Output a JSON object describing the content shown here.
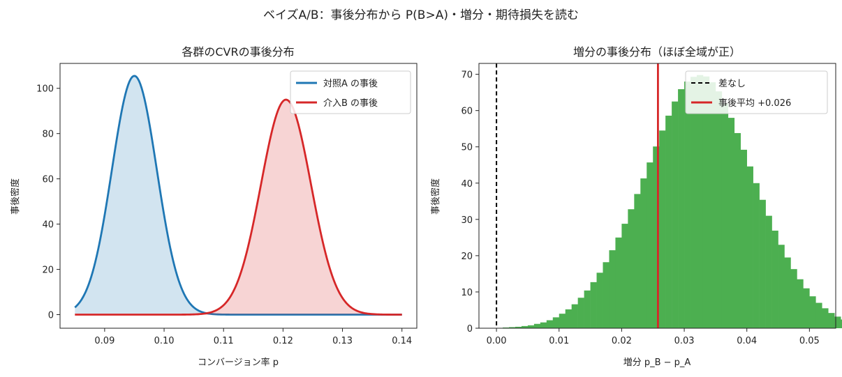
{
  "suptitle": "ベイズA/B：事後分布から P(B>A)・増分・期待損失を読む",
  "colors": {
    "a": "#1f77b4",
    "b": "#d62728",
    "hist": "#4caf50",
    "zero_line": "#000000"
  },
  "chart_data": [
    {
      "type": "area",
      "title": "各群のCVRの事後分布",
      "xlabel": "コンバージョン率 p",
      "ylabel": "事後密度",
      "xlim": [
        0.0825,
        0.1425
      ],
      "ylim": [
        -6,
        111
      ],
      "xticks": [
        0.09,
        0.1,
        0.11,
        0.12,
        0.13,
        0.14
      ],
      "xtick_labels": [
        "0.09",
        "0.10",
        "0.11",
        "0.12",
        "0.13",
        "0.14"
      ],
      "yticks": [
        0,
        20,
        40,
        60,
        80,
        100
      ],
      "ytick_labels": [
        "0",
        "20",
        "40",
        "60",
        "80",
        "100"
      ],
      "grid": false,
      "legend_position": "top-right",
      "x_range": [
        0.085,
        0.14
      ],
      "series": [
        {
          "name": "対照A の事後",
          "color": "#1f77b4",
          "mean": 0.095,
          "sd": 0.00378,
          "peak": 105.5
        },
        {
          "name": "介入B の事後",
          "color": "#d62728",
          "mean": 0.1205,
          "sd": 0.0042,
          "peak": 95
        }
      ]
    },
    {
      "type": "bar",
      "title": "増分の事後分布（ほぼ全域が正）",
      "xlabel": "増分 p_B − p_A",
      "ylabel": "事後密度",
      "xlim": [
        -0.0028,
        0.0542
      ],
      "ylim": [
        0,
        73
      ],
      "xticks": [
        0.0,
        0.01,
        0.02,
        0.03,
        0.04,
        0.05
      ],
      "xtick_labels": [
        "0.00",
        "0.01",
        "0.02",
        "0.03",
        "0.04",
        "0.05"
      ],
      "yticks": [
        0,
        10,
        20,
        30,
        40,
        50,
        60,
        70
      ],
      "ytick_labels": [
        "0",
        "10",
        "20",
        "30",
        "40",
        "50",
        "60",
        "70"
      ],
      "grid": false,
      "legend_position": "top-right",
      "bin_start": 0.0,
      "bin_width": 0.001,
      "hist_values": [
        0.1,
        0.2,
        0.3,
        0.4,
        0.6,
        0.8,
        1.2,
        1.6,
        2.2,
        3.0,
        4.0,
        5.2,
        6.6,
        8.4,
        10.4,
        12.7,
        15.3,
        18.2,
        21.5,
        25.0,
        28.8,
        32.8,
        37.0,
        41.3,
        45.7,
        50.1,
        54.5,
        58.6,
        62.5,
        65.9,
        68.0,
        69.3,
        69.8,
        69.4,
        67.8,
        65.3,
        62.0,
        58.0,
        53.8,
        49.2,
        44.6,
        40.0,
        35.4,
        31.0,
        26.9,
        23.0,
        19.5,
        16.3,
        13.5,
        11.0,
        8.8,
        7.0,
        5.5,
        4.2,
        3.2,
        2.4,
        1.8,
        1.3,
        0.9,
        0.6,
        0.4,
        0.3,
        0.2,
        0.1,
        0.1,
        0.1,
        0.05,
        0.05,
        0.05,
        0.05
      ],
      "zero_line": {
        "label": "差なし",
        "value": 0.0
      },
      "mean_line": {
        "label": "事後平均 +0.026",
        "value": 0.0258
      }
    }
  ]
}
